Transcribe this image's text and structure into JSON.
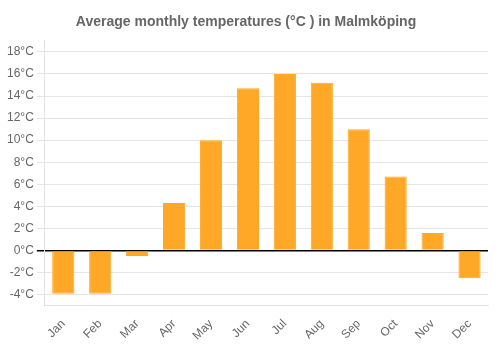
{
  "chart_data": {
    "type": "bar",
    "title": "Average monthly temperatures (°C ) in Malmköping",
    "categories": [
      "Jan",
      "Feb",
      "Mar",
      "Apr",
      "May",
      "Jun",
      "Jul",
      "Aug",
      "Sep",
      "Oct",
      "Nov",
      "Dec"
    ],
    "values": [
      -3.9,
      -3.9,
      -0.5,
      4.3,
      10.0,
      14.7,
      16.0,
      15.2,
      11.0,
      6.7,
      1.6,
      -2.5
    ],
    "color": "#FFA726",
    "ylim": [
      -5,
      19
    ],
    "yticks": [
      {
        "value": -4,
        "label": "-4°C"
      },
      {
        "value": -2,
        "label": "-2°C"
      },
      {
        "value": 0,
        "label": "0°C"
      },
      {
        "value": 2,
        "label": "2°C"
      },
      {
        "value": 4,
        "label": "4°C"
      },
      {
        "value": 6,
        "label": "6°C"
      },
      {
        "value": 8,
        "label": "8°C"
      },
      {
        "value": 10,
        "label": "10°C"
      },
      {
        "value": 12,
        "label": "12°C"
      },
      {
        "value": 14,
        "label": "14°C"
      },
      {
        "value": 16,
        "label": "16°C"
      },
      {
        "value": 18,
        "label": "18°C"
      }
    ],
    "grid": true
  }
}
